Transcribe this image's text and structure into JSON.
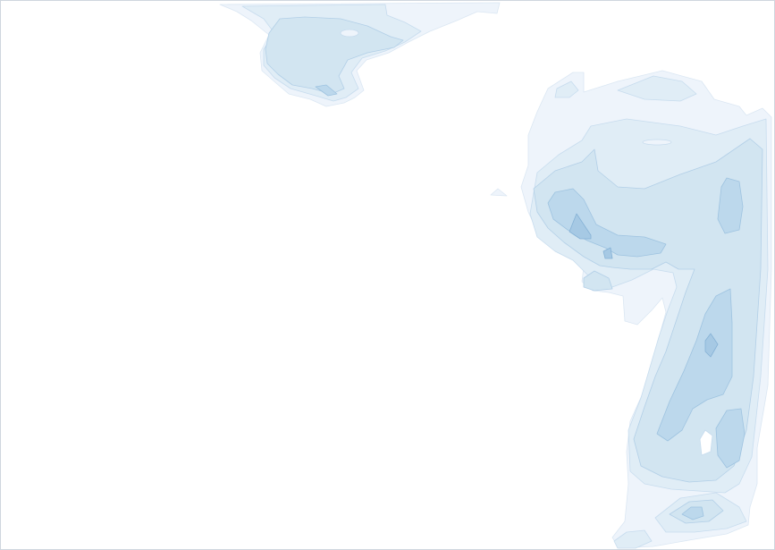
{
  "map": {
    "type": "filled-contour-density",
    "text_labels": [],
    "colors": {
      "background": "#ffffff",
      "frame": "#cfd6de",
      "level_fills": [
        "#eef4fb",
        "#e0edf6",
        "#d2e5f1",
        "#bcd8ec",
        "#a6c9e4"
      ],
      "level_strokes": [
        "#dbe7f3",
        "#c7dcee",
        "#b2cfe7",
        "#9ec3e0",
        "#86b2d6"
      ]
    },
    "levels_visible": 5
  }
}
